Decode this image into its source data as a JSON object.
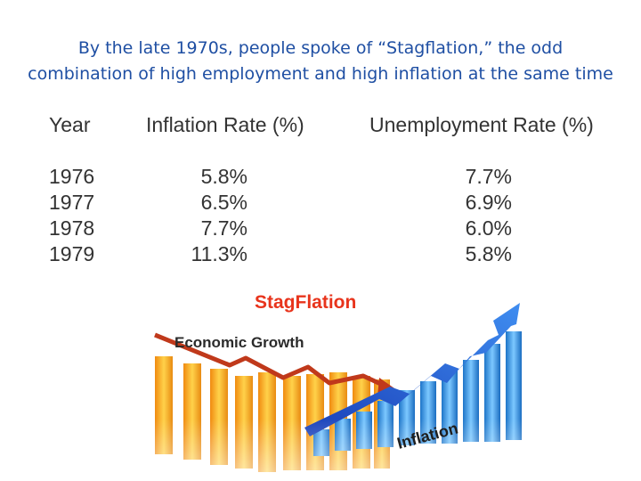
{
  "slide": {
    "title_line1": "By the late 1970s, people spoke of “Stagflation,” the odd",
    "title_line2": "combination of high employment and high inflation at the same time"
  },
  "table": {
    "headers": [
      "Year",
      "Inflation Rate (%)",
      "Unemployment Rate (%)"
    ],
    "rows": [
      {
        "year": "1976",
        "inflation": "5.8%",
        "unemployment": "7.7%"
      },
      {
        "year": "1977",
        "inflation": "6.5%",
        "unemployment": "6.9%"
      },
      {
        "year": "1978",
        "inflation": "7.7%",
        "unemployment": "6.0%"
      },
      {
        "year": "1979",
        "inflation": "11.3%",
        "unemployment": "5.8%"
      }
    ]
  },
  "graphic": {
    "title": "StagFlation",
    "growth_label": "Economic Growth",
    "inflation_label": "Inflation",
    "colors": {
      "title": "#e8341c",
      "orange_bar": "#f5a81c",
      "blue_bar": "#2f9be8",
      "red_arrow": "#c0391b",
      "blue_arrow": "#1f4fd0"
    }
  }
}
